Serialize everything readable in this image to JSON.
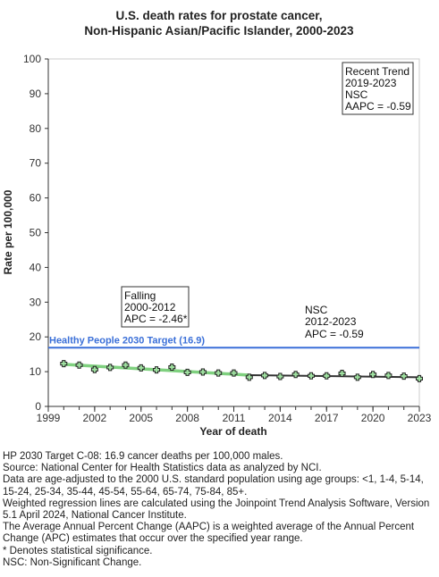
{
  "chart_data": {
    "type": "line",
    "title": [
      "U.S. death rates for prostate cancer,",
      "Non-Hispanic Asian/Pacific Islander,  2000-2023"
    ],
    "xlabel": "Year of death",
    "ylabel": "Rate per 100,000",
    "xlim": [
      1999,
      2023
    ],
    "ylim": [
      0,
      100
    ],
    "x_ticks": [
      "1999",
      "2002",
      "2005",
      "2008",
      "2011",
      "2014",
      "2017",
      "2020",
      "2023"
    ],
    "y_ticks": [
      "0",
      "10",
      "20",
      "30",
      "40",
      "50",
      "60",
      "70",
      "80",
      "90",
      "100"
    ],
    "grid": false,
    "observed": {
      "x": [
        2000,
        2001,
        2002,
        2003,
        2004,
        2005,
        2006,
        2007,
        2008,
        2009,
        2010,
        2011,
        2012,
        2013,
        2014,
        2015,
        2016,
        2017,
        2018,
        2019,
        2020,
        2021,
        2022,
        2023
      ],
      "y": [
        12.3,
        11.9,
        10.6,
        11.2,
        11.9,
        11.1,
        10.5,
        11.3,
        9.8,
        9.9,
        9.6,
        9.6,
        8.4,
        8.9,
        8.6,
        9.2,
        8.8,
        8.8,
        9.5,
        8.4,
        9.2,
        8.9,
        8.7,
        8.0
      ]
    },
    "trend_segments": [
      {
        "x": [
          2000,
          2012
        ],
        "y": [
          12.1,
          9.0
        ],
        "color": "#7fd07f"
      },
      {
        "x": [
          2012,
          2023
        ],
        "y": [
          9.0,
          8.4
        ],
        "color": "#333333"
      }
    ],
    "reference_line": {
      "label": "Healthy People 2030 Target (16.9)",
      "y": 16.9,
      "color": "#3a6fd8"
    },
    "annotations": [
      {
        "lines": [
          "Falling",
          "2000-2012",
          "APC = -2.46*"
        ]
      },
      {
        "lines": [
          "NSC",
          "2012-2023",
          "APC = -0.59"
        ]
      },
      {
        "lines": [
          "Recent Trend",
          "2019-2023",
          "NSC",
          "AAPC = -0.59"
        ]
      }
    ]
  },
  "footnotes": [
    "HP 2030 Target C-08: 16.9 cancer deaths per 100,000 males.",
    "Source: National Center for Health Statistics data as analyzed by NCI.",
    "Data are age-adjusted to the 2000 U.S. standard population using age groups: <1, 1-4, 5-14, 15-24, 25-34, 35-44, 45-54, 55-64, 65-74, 75-84, 85+.",
    "Weighted regression lines are calculated using the Joinpoint Trend Analysis Software, Version 5.1 April 2024, National Cancer Institute.",
    "The Average Annual Percent Change (AAPC) is a weighted average of the Annual Percent Change (APC) estimates that occur over the specified year range.",
    "* Denotes statistical significance.",
    "NSC: Non-Significant Change."
  ]
}
